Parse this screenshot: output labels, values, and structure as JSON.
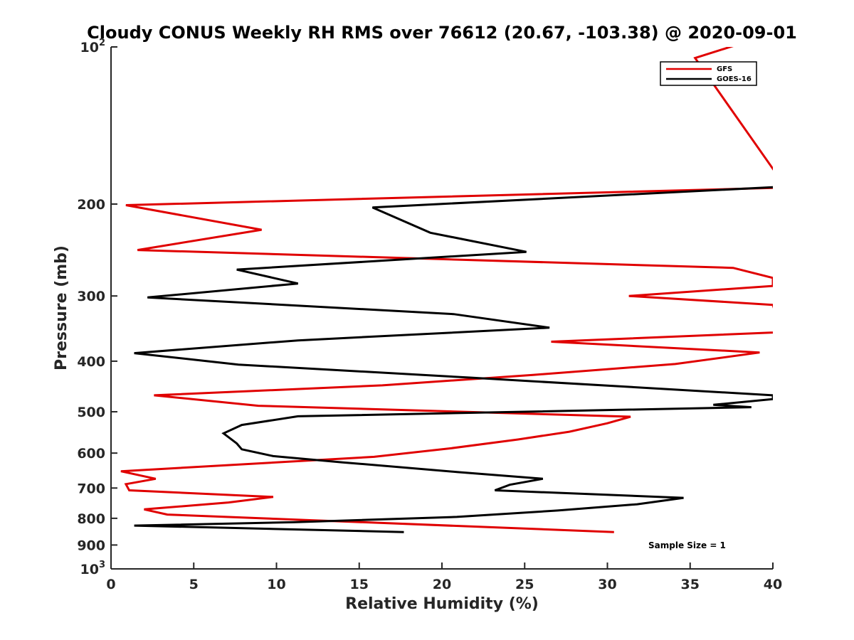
{
  "chart_data": {
    "type": "line",
    "title": "Cloudy CONUS Weekly RH RMS over 76612 (20.67, -103.38) @ 2020-09-01",
    "xlabel": "Relative Humidity (%)",
    "ylabel": "Pressure (mb)",
    "xlim": [
      0,
      40
    ],
    "ylim": [
      100,
      1000
    ],
    "yscale": "log",
    "yreversed": true,
    "grid": false,
    "legend_position": "top-right",
    "x_ticks": [
      "0",
      "5",
      "10",
      "15",
      "20",
      "25",
      "30",
      "35",
      "40"
    ],
    "x_tick_values": [
      0,
      5,
      10,
      15,
      20,
      25,
      30,
      35,
      40
    ],
    "y_ticks": [
      {
        "value": 100,
        "base": "10",
        "exp": "2"
      },
      {
        "value": 200,
        "label": "200"
      },
      {
        "value": 300,
        "label": "300"
      },
      {
        "value": 400,
        "label": "400"
      },
      {
        "value": 500,
        "label": "500"
      },
      {
        "value": 600,
        "label": "600"
      },
      {
        "value": 700,
        "label": "700"
      },
      {
        "value": 800,
        "label": "800"
      },
      {
        "value": 900,
        "label": "900"
      },
      {
        "value": 1000,
        "base": "10",
        "exp": "3"
      }
    ],
    "series": [
      {
        "name": "GFS",
        "color": "#e00000",
        "points": [
          [
            30.4,
            850
          ],
          [
            3.4,
            787
          ],
          [
            2.0,
            769
          ],
          [
            7.1,
            746
          ],
          [
            9.8,
            728
          ],
          [
            1.1,
            707
          ],
          [
            0.9,
            688
          ],
          [
            2.7,
            672
          ],
          [
            0.6,
            650
          ],
          [
            15.9,
            610
          ],
          [
            20.6,
            587
          ],
          [
            24.6,
            565
          ],
          [
            27.7,
            546
          ],
          [
            30.0,
            526
          ],
          [
            31.4,
            511
          ],
          [
            8.9,
            487
          ],
          [
            2.6,
            465
          ],
          [
            16.4,
            445
          ],
          [
            25.5,
            425
          ],
          [
            34.1,
            405
          ],
          [
            39.2,
            385
          ],
          [
            26.6,
            367
          ],
          [
            40.5,
            352
          ],
          [
            40.0,
            312
          ],
          [
            31.3,
            300
          ],
          [
            40.0,
            287
          ],
          [
            40.0,
            277
          ],
          [
            37.6,
            265
          ],
          [
            1.6,
            245
          ],
          [
            9.1,
            224
          ],
          [
            0.9,
            201
          ],
          [
            40.8,
            186
          ],
          [
            35.3,
            105
          ],
          [
            41.5,
            91
          ]
        ]
      },
      {
        "name": "GOES-16",
        "color": "#000000",
        "points": [
          [
            17.7,
            850
          ],
          [
            1.4,
            826
          ],
          [
            11.0,
            814
          ],
          [
            20.9,
            795
          ],
          [
            27.0,
            773
          ],
          [
            31.8,
            752
          ],
          [
            34.6,
            731
          ],
          [
            23.2,
            707
          ],
          [
            24.1,
            690
          ],
          [
            26.1,
            672
          ],
          [
            20.9,
            652
          ],
          [
            14.0,
            625
          ],
          [
            9.8,
            608
          ],
          [
            7.9,
            590
          ],
          [
            7.6,
            575
          ],
          [
            6.8,
            550
          ],
          [
            7.9,
            530
          ],
          [
            11.3,
            510
          ],
          [
            38.7,
            490
          ],
          [
            36.4,
            485
          ],
          [
            40.0,
            473
          ],
          [
            40.0,
            465
          ],
          [
            21.7,
            430
          ],
          [
            7.7,
            406
          ],
          [
            1.4,
            386
          ],
          [
            11.3,
            365
          ],
          [
            26.5,
            345
          ],
          [
            20.7,
            325
          ],
          [
            2.2,
            302
          ],
          [
            11.3,
            284
          ],
          [
            7.6,
            267
          ],
          [
            25.1,
            247
          ],
          [
            19.3,
            227
          ],
          [
            15.8,
            203
          ],
          [
            41.0,
            185
          ]
        ]
      }
    ],
    "annotations": [
      "Sample Size = 1"
    ]
  }
}
